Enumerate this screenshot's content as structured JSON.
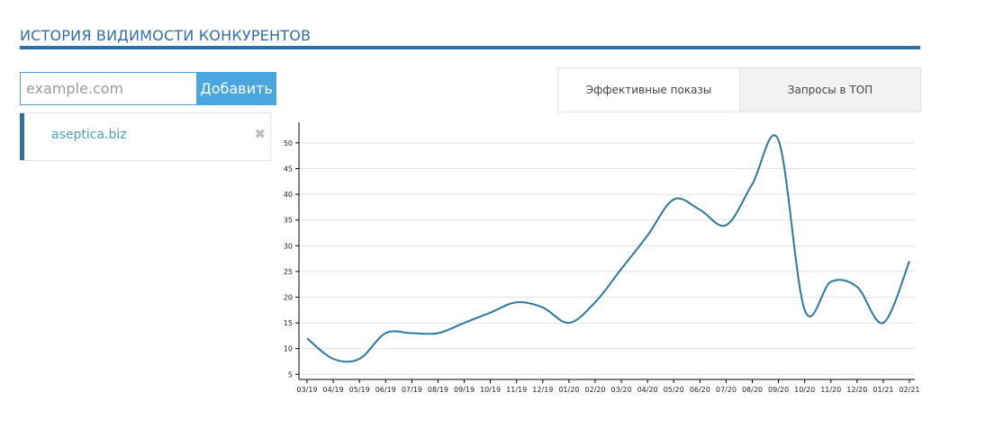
{
  "header": {
    "title": "ИСТОРИЯ ВИДИМОСТИ КОНКУРЕНТОВ"
  },
  "form": {
    "placeholder": "example.com",
    "value": "",
    "add_label": "Добавить"
  },
  "competitors": [
    {
      "name": "aseptica.biz"
    }
  ],
  "tabs": [
    {
      "label": "Эффективные показы",
      "active": true
    },
    {
      "label": "Запросы в ТОП",
      "active": false
    }
  ],
  "colors": {
    "accent": "#2f6fa8",
    "button": "#4aa6df",
    "line": "#2c78a4",
    "grid": "#e0e0e0"
  },
  "icons": {
    "remove": "close-icon"
  },
  "chart_data": {
    "type": "line",
    "categories": [
      "03/19",
      "04/19",
      "05/19",
      "06/19",
      "07/19",
      "08/19",
      "09/19",
      "10/19",
      "11/19",
      "12/19",
      "01/20",
      "02/20",
      "03/20",
      "04/20",
      "05/20",
      "06/20",
      "07/20",
      "08/20",
      "09/20",
      "10/20",
      "11/20",
      "12/20",
      "01/21",
      "02/21"
    ],
    "series": [
      {
        "values": [
          12,
          8,
          8,
          13,
          13,
          13,
          15,
          17,
          19,
          18,
          15,
          19,
          25.5,
          32,
          39,
          37,
          34,
          42,
          50.5,
          17.5,
          23,
          22,
          15,
          27
        ]
      }
    ],
    "yticks": [
      5,
      10,
      15,
      20,
      25,
      30,
      35,
      40,
      45,
      50
    ],
    "ylim": [
      4,
      54
    ],
    "grid": true,
    "title": "",
    "xlabel": "",
    "ylabel": ""
  }
}
